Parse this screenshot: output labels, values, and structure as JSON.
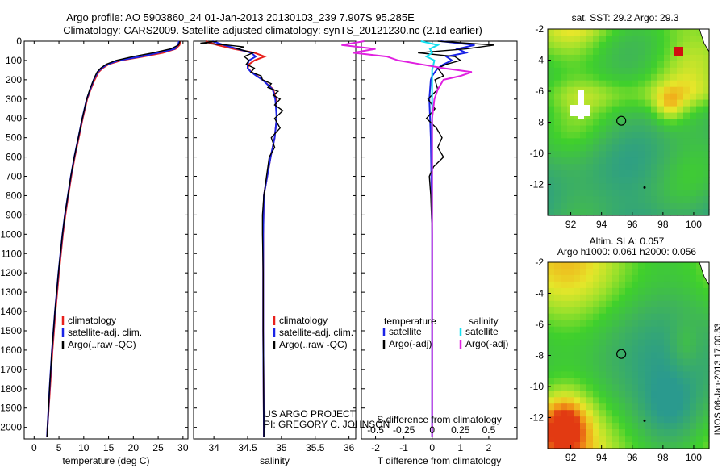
{
  "header": {
    "title_line1": "Argo profile: AO 5903860_24 01-Jan-2013 20130103_239 7.907S 95.285E",
    "title_line2": "Climatology: CARS2009. Satellite-adjusted climatology: synTS_20121230.nc (2.1d earlier)"
  },
  "colors": {
    "clim": "#e8201c",
    "sat": "#1a23e6",
    "argo": "#000000",
    "sat_s": "#14e0f0",
    "argo_s": "#e020e0"
  },
  "chart_data": [
    {
      "type": "line",
      "name": "temperature",
      "xlabel": "temperature (deg C)",
      "ylabel": "",
      "xlim": [
        -2,
        31
      ],
      "ylim": [
        2060,
        0
      ],
      "xticks": [
        0,
        5,
        10,
        15,
        20,
        25,
        30
      ],
      "xtick_labels": [
        "0",
        "5",
        "10",
        "15",
        "20",
        "25",
        "30"
      ],
      "yticks": [
        0,
        100,
        200,
        300,
        400,
        500,
        600,
        700,
        800,
        900,
        1000,
        1100,
        1200,
        1300,
        1400,
        1500,
        1600,
        1700,
        1800,
        1900,
        2000
      ],
      "ytick_labels": [
        "0",
        "100",
        "200",
        "300",
        "400",
        "500",
        "600",
        "700",
        "800",
        "900",
        "1000",
        "1100",
        "1200",
        "1300",
        "1400",
        "1500",
        "1600",
        "1700",
        "1800",
        "1900",
        "2000"
      ],
      "legend": [
        "climatology",
        "satellite-adj. clim.",
        "Argo(..raw -QC)"
      ],
      "series": [
        {
          "name": "climatology",
          "color": "clim",
          "depth": [
            0,
            20,
            40,
            60,
            80,
            100,
            120,
            140,
            160,
            180,
            200,
            250,
            300,
            400,
            500,
            600,
            700,
            800,
            900,
            1000,
            1200,
            1400,
            1600,
            1800,
            2000,
            2050
          ],
          "values": [
            29.5,
            29.3,
            28.5,
            26,
            22,
            17.5,
            15,
            13.8,
            13,
            12.6,
            12.2,
            11.4,
            10.7,
            9.8,
            9,
            8.2,
            7.5,
            6.9,
            6.3,
            5.8,
            5,
            4.3,
            3.7,
            3.2,
            2.7,
            2.6
          ]
        },
        {
          "name": "satellite",
          "color": "sat",
          "depth": [
            0,
            20,
            40,
            60,
            80,
            100,
            120,
            140,
            160,
            180,
            200,
            250,
            300,
            400,
            500,
            600,
            700,
            800,
            900,
            1000,
            1200,
            1400,
            1600,
            1800,
            2000,
            2050
          ],
          "values": [
            29.2,
            29,
            28.3,
            25,
            21.5,
            17,
            14.8,
            13.6,
            12.8,
            12.4,
            12,
            11.3,
            10.6,
            9.7,
            8.9,
            8.1,
            7.4,
            6.8,
            6.2,
            5.7,
            4.9,
            4.2,
            3.6,
            3.1,
            2.7,
            2.6
          ]
        },
        {
          "name": "argo",
          "color": "argo",
          "depth": [
            0,
            20,
            40,
            60,
            80,
            100,
            120,
            140,
            160,
            180,
            200,
            250,
            300,
            400,
            500,
            600,
            700,
            800,
            900,
            1000,
            1200,
            1400,
            1600,
            1800,
            2000,
            2050
          ],
          "values": [
            29.4,
            29.1,
            27.5,
            24,
            20,
            16.5,
            14.5,
            13.4,
            12.7,
            12.3,
            12,
            11.2,
            10.6,
            9.7,
            8.9,
            8.1,
            7.4,
            6.8,
            6.2,
            5.7,
            4.9,
            4.2,
            3.6,
            3.1,
            2.7,
            2.6
          ]
        }
      ]
    },
    {
      "type": "line",
      "name": "salinity",
      "xlabel": "salinity",
      "xlim": [
        33.7,
        36.1
      ],
      "ylim": [
        2060,
        0
      ],
      "xticks": [
        34,
        34.5,
        35,
        35.5,
        36
      ],
      "xtick_labels": [
        "34",
        "34.5",
        "35",
        "35.5",
        "36"
      ],
      "legend": [
        "climatology",
        "satellite-adj. clim.",
        "Argo(..raw -QC)"
      ],
      "annotation": [
        "US ARGO PROJECT",
        "PI: GREGORY C. JOHNSON"
      ],
      "series": [
        {
          "name": "climatology",
          "color": "clim",
          "depth": [
            0,
            20,
            40,
            60,
            80,
            100,
            120,
            140,
            160,
            180,
            200,
            250,
            300,
            350,
            400,
            500,
            600,
            800,
            1000,
            1200,
            1500,
            2000,
            2050
          ],
          "values": [
            33.88,
            34.05,
            34.3,
            34.6,
            34.75,
            34.6,
            34.52,
            34.5,
            34.56,
            34.64,
            34.72,
            34.88,
            34.92,
            34.93,
            34.93,
            34.9,
            34.84,
            34.74,
            34.73,
            34.73,
            34.73,
            34.74,
            34.74
          ]
        },
        {
          "name": "satellite",
          "color": "sat",
          "depth": [
            0,
            20,
            40,
            60,
            80,
            100,
            120,
            140,
            160,
            180,
            200,
            250,
            300,
            350,
            400,
            500,
            600,
            800,
            1000,
            1200,
            1500,
            2000,
            2050
          ],
          "values": [
            33.98,
            34.15,
            34.35,
            34.55,
            34.62,
            34.52,
            34.5,
            34.5,
            34.55,
            34.63,
            34.72,
            34.87,
            34.91,
            34.92,
            34.93,
            34.9,
            34.84,
            34.74,
            34.73,
            34.73,
            34.73,
            34.74,
            34.74
          ]
        },
        {
          "name": "argo",
          "color": "argo",
          "depth": [
            0,
            10,
            20,
            30,
            40,
            60,
            80,
            100,
            120,
            140,
            160,
            180,
            200,
            220,
            240,
            260,
            280,
            300,
            330,
            360,
            400,
            450,
            500,
            550,
            600,
            650,
            700,
            800,
            900,
            1000,
            1200,
            1500,
            2000,
            2050
          ],
          "values": [
            34.05,
            33.8,
            34.2,
            34.45,
            34.35,
            34.58,
            34.45,
            34.52,
            34.48,
            34.6,
            34.55,
            34.7,
            34.72,
            34.85,
            34.8,
            34.95,
            34.88,
            34.98,
            34.9,
            35.02,
            34.9,
            34.98,
            34.85,
            34.9,
            34.82,
            34.8,
            34.78,
            34.74,
            34.72,
            34.72,
            34.73,
            34.73,
            34.74,
            34.74
          ]
        }
      ]
    },
    {
      "type": "line",
      "name": "differences",
      "xlabel": "T difference from climatology",
      "xlabel_top": "S difference from climatology",
      "xlim": [
        -2.5,
        3
      ],
      "ylim": [
        2060,
        0
      ],
      "xticks": [
        -2,
        -1,
        0,
        1,
        2
      ],
      "xtick_labels": [
        "-2",
        "-1",
        "0",
        "1",
        "2"
      ],
      "s_ticks": [
        -0.5,
        -0.25,
        0,
        0.25,
        0.5
      ],
      "s_tick_labels": [
        "-0.5",
        "-0.25",
        "0",
        "0.25",
        "0.5"
      ],
      "legend_titles": [
        "temperature",
        "salinity"
      ],
      "legend": [
        "satellite",
        "Argo(-adj)",
        "satellite",
        "Argo(-adj)"
      ],
      "series": [
        {
          "name": "T satellite",
          "color": "sat",
          "depth": [
            0,
            20,
            40,
            60,
            80,
            100,
            120,
            140,
            160,
            180,
            200,
            300,
            500,
            1000,
            2000,
            2050
          ],
          "values": [
            0.3,
            1.5,
            0.9,
            1.2,
            0.5,
            0.7,
            0.4,
            0.2,
            0.1,
            0.0,
            -0.05,
            -0.1,
            -0.05,
            0,
            0,
            0
          ]
        },
        {
          "name": "T argo",
          "color": "argo",
          "depth": [
            0,
            20,
            40,
            60,
            80,
            100,
            120,
            140,
            160,
            180,
            200,
            250,
            300,
            350,
            400,
            450,
            500,
            550,
            600,
            650,
            700,
            800,
            1000,
            1500,
            2000,
            2050
          ],
          "values": [
            0.2,
            2.2,
            1.2,
            -0.5,
            0.8,
            1.0,
            0.5,
            0.2,
            0.3,
            0.4,
            0.1,
            0.2,
            -0.15,
            0.1,
            -0.2,
            0.15,
            0.35,
            0.2,
            0.4,
            0.05,
            -0.1,
            -0.05,
            0,
            0,
            0,
            0
          ]
        },
        {
          "name": "S satellite",
          "color": "sat_s",
          "depth": [
            0,
            20,
            40,
            60,
            80,
            100,
            150,
            200,
            300,
            500,
            1000,
            2000,
            2050
          ],
          "values": [
            -0.1,
            0.05,
            -0.02,
            0.0,
            -0.05,
            0.02,
            0.0,
            0.0,
            0.0,
            0.0,
            0.0,
            0.0,
            0.0
          ]
        },
        {
          "name": "S argo",
          "color": "argo_s",
          "depth": [
            0,
            20,
            40,
            60,
            80,
            100,
            120,
            140,
            160,
            180,
            200,
            250,
            300,
            400,
            500,
            1000,
            2000,
            2050
          ],
          "values": [
            -0.6,
            -0.8,
            -0.5,
            -0.7,
            -0.4,
            -0.3,
            -0.1,
            0.1,
            0.35,
            0.25,
            0.1,
            0.05,
            0.02,
            0.0,
            0.0,
            0.0,
            0.0,
            0.0
          ]
        }
      ]
    },
    {
      "type": "heatmap",
      "name": "sst-map",
      "title": "sat. SST: 29.2 Argo: 29.3",
      "xlim": [
        90.5,
        101
      ],
      "ylim": [
        -14,
        -2
      ],
      "xticks": [
        92,
        94,
        96,
        98,
        100
      ],
      "yticks": [
        -2,
        -4,
        -6,
        -8,
        -10,
        -12
      ],
      "xtick_labels": [
        "92",
        "94",
        "96",
        "98",
        "100"
      ],
      "ytick_labels": [
        "-2",
        "-4",
        "-6",
        "-8",
        "-10",
        "-12"
      ],
      "marker": {
        "lon": 95.285,
        "lat": -7.907
      }
    },
    {
      "type": "heatmap",
      "name": "sla-map",
      "title_line1": "Altim. SLA: 0.057",
      "title_line2": "Argo h1000: 0.061 h2000: 0.056",
      "xlim": [
        90.5,
        101
      ],
      "ylim": [
        -14,
        -2
      ],
      "xticks": [
        92,
        94,
        96,
        98,
        100
      ],
      "yticks": [
        -2,
        -4,
        -6,
        -8,
        -10,
        -12
      ],
      "xtick_labels": [
        "92",
        "94",
        "96",
        "98",
        "100"
      ],
      "ytick_labels": [
        "-2",
        "-4",
        "-6",
        "-8",
        "-10",
        "-12"
      ],
      "marker": {
        "lon": 95.285,
        "lat": -7.907
      }
    }
  ],
  "side_label": "IMOS 06-Jan-2013 17:00:33"
}
